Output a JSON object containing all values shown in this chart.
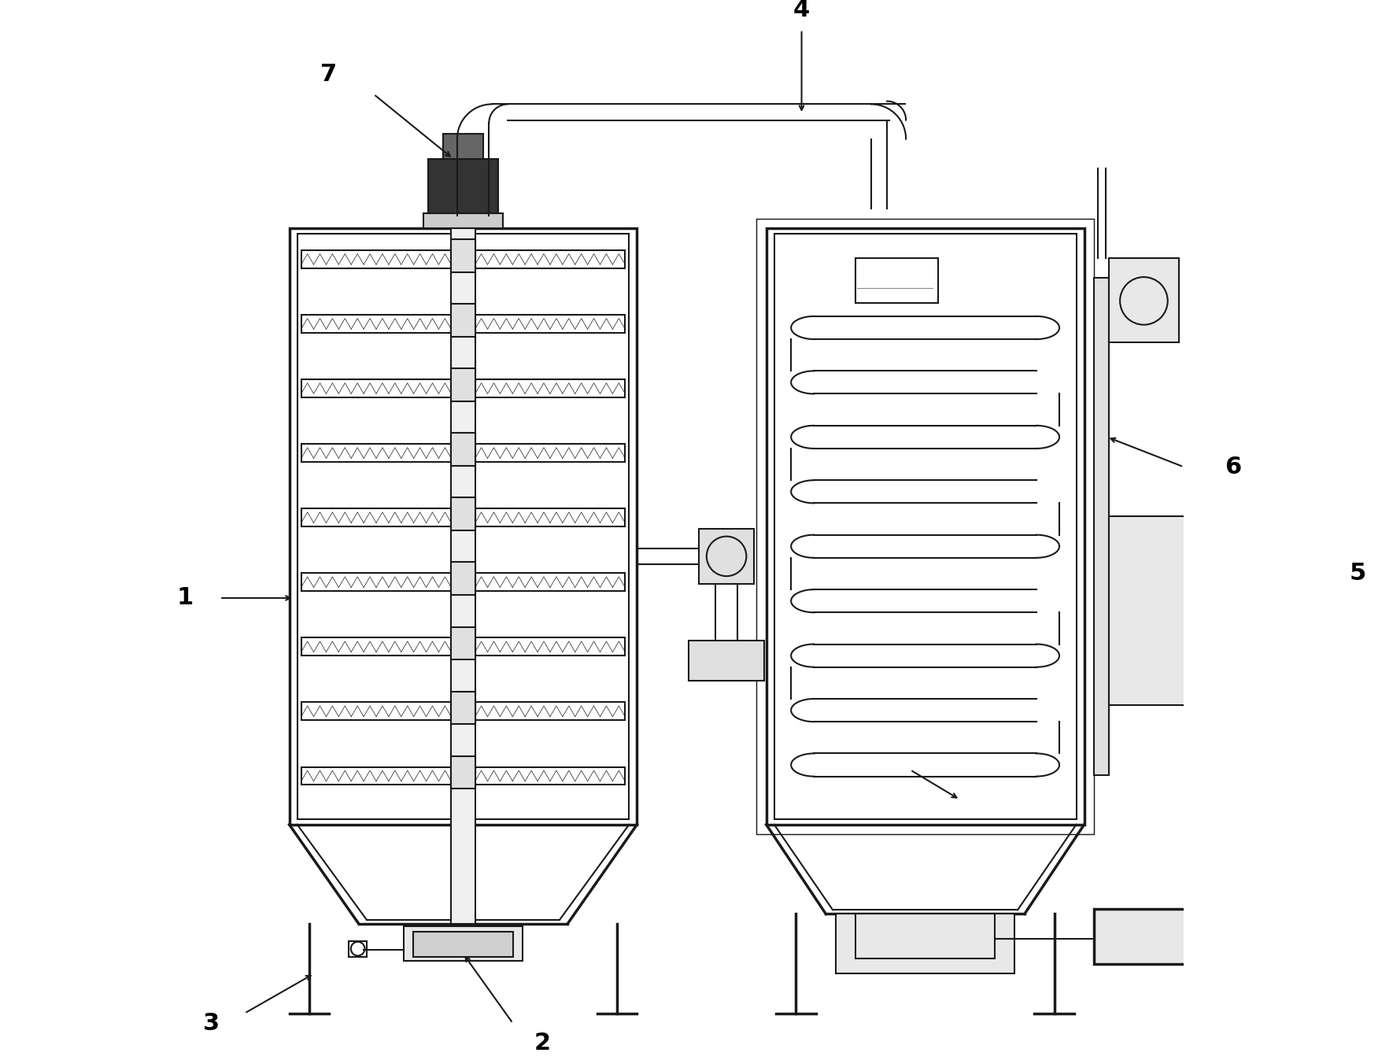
{
  "bg_color": "#ffffff",
  "line_color": "#1a1a1a",
  "line_width": 1.5,
  "thick_line": 2.5,
  "label_fontsize": 22,
  "arrow_color": "#1a1a1a"
}
